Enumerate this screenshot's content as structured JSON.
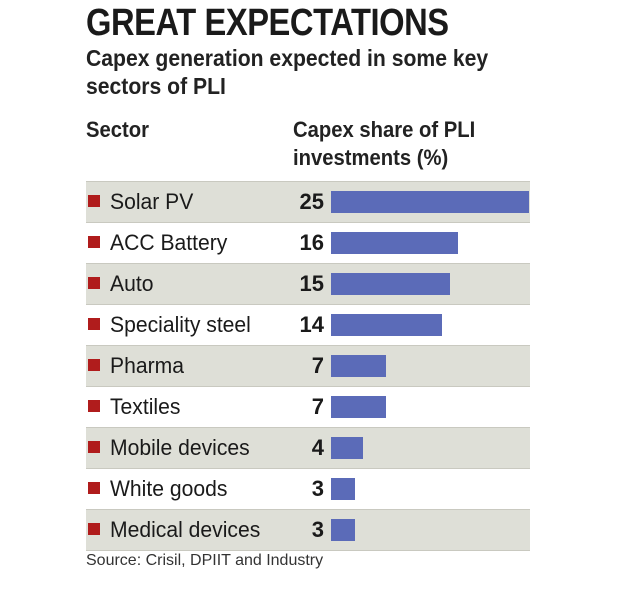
{
  "title": "GREAT EXPECTATIONS",
  "subtitle": "Capex generation expected in some key sectors of PLI",
  "headers": {
    "sector": "Sector",
    "capex": "Capex share of PLI investments (%)"
  },
  "colors": {
    "bar": "#5b6bb8",
    "bullet": "#b01c1c",
    "stripe": "#dedfd7"
  },
  "chart_data": {
    "type": "bar",
    "orientation": "horizontal",
    "title": "GREAT EXPECTATIONS",
    "subtitle": "Capex generation expected in some key sectors of PLI",
    "categories": [
      "Solar PV",
      "ACC Battery",
      "Auto",
      "Speciality steel",
      "Pharma",
      "Textiles",
      "Mobile devices",
      "White goods",
      "Medical devices"
    ],
    "values": [
      25,
      16,
      15,
      14,
      7,
      7,
      4,
      3,
      3
    ],
    "xlabel": "Capex share of PLI investments (%)",
    "ylabel": "Sector",
    "xlim": [
      0,
      25
    ],
    "grid": false,
    "data_labels": true
  },
  "source": "Source: Crisil, DPIIT and Industry"
}
